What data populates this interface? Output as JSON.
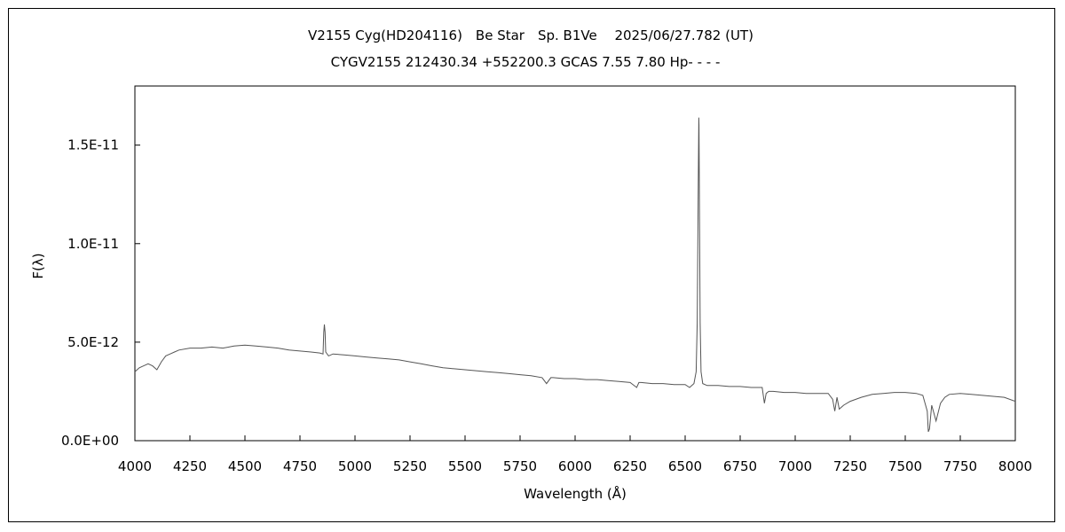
{
  "chart_data": {
    "type": "line",
    "title": "V2155 Cyg(HD204116)　Be Star　Sp. B1Ve　 2025/06/27.782 (UT)",
    "subtitle": "CYGV2155 212430.34 +552200.3 GCAS 7.55 7.80 Hp- - - -",
    "xlabel": "Wavelength (Å)",
    "ylabel": "F(λ)",
    "xlim": [
      4000,
      8000
    ],
    "ylim": [
      0,
      1.8e-11
    ],
    "xticks": [
      4000,
      4250,
      4500,
      4750,
      5000,
      5250,
      5500,
      5750,
      6000,
      6250,
      6500,
      6750,
      7000,
      7250,
      7500,
      7750,
      8000
    ],
    "xtick_labels": [
      "4000",
      "4250",
      "4500",
      "4750",
      "5000",
      "5250",
      "5500",
      "5750",
      "6000",
      "6250",
      "6500",
      "6750",
      "7000",
      "7250",
      "7500",
      "7750",
      "8000"
    ],
    "yticks": [
      0,
      5e-12,
      1e-11,
      1.5e-11
    ],
    "ytick_labels": [
      "0.0E+00",
      "5.0E-12",
      "1.0E-11",
      "1.5E-11"
    ],
    "grid": false,
    "line_color": "#555555",
    "series": [
      {
        "x": [
          4000,
          4020,
          4040,
          4060,
          4080,
          4100,
          4120,
          4140,
          4160,
          4180,
          4200,
          4250,
          4300,
          4350,
          4400,
          4450,
          4500,
          4550,
          4600,
          4650,
          4700,
          4750,
          4800,
          4840,
          4855,
          4858,
          4861,
          4864,
          4867,
          4880,
          4900,
          4950,
          5000,
          5050,
          5100,
          5150,
          5200,
          5250,
          5300,
          5350,
          5400,
          5450,
          5500,
          5550,
          5600,
          5650,
          5700,
          5750,
          5800,
          5850,
          5870,
          5890,
          5900,
          5950,
          6000,
          6050,
          6100,
          6150,
          6200,
          6250,
          6280,
          6290,
          6300,
          6350,
          6400,
          6450,
          6500,
          6520,
          6540,
          6550,
          6555,
          6559,
          6562,
          6563,
          6565,
          6568,
          6572,
          6580,
          6600,
          6650,
          6700,
          6750,
          6800,
          6850,
          6860,
          6868,
          6880,
          6900,
          6950,
          7000,
          7050,
          7100,
          7150,
          7170,
          7180,
          7190,
          7200,
          7220,
          7250,
          7300,
          7350,
          7400,
          7450,
          7500,
          7550,
          7580,
          7600,
          7605,
          7610,
          7620,
          7640,
          7660,
          7680,
          7700,
          7750,
          7800,
          7850,
          7900,
          7950,
          8000
        ],
        "y": [
          3.5e-12,
          3.7e-12,
          3.8e-12,
          3.9e-12,
          3.8e-12,
          3.6e-12,
          4e-12,
          4.3e-12,
          4.4e-12,
          4.5e-12,
          4.6e-12,
          4.7e-12,
          4.7e-12,
          4.75e-12,
          4.7e-12,
          4.8e-12,
          4.85e-12,
          4.8e-12,
          4.75e-12,
          4.7e-12,
          4.6e-12,
          4.55e-12,
          4.5e-12,
          4.45e-12,
          4.4e-12,
          5.5e-12,
          5.9e-12,
          5.5e-12,
          4.5e-12,
          4.3e-12,
          4.4e-12,
          4.35e-12,
          4.3e-12,
          4.25e-12,
          4.2e-12,
          4.15e-12,
          4.1e-12,
          4e-12,
          3.9e-12,
          3.8e-12,
          3.7e-12,
          3.65e-12,
          3.6e-12,
          3.55e-12,
          3.5e-12,
          3.45e-12,
          3.4e-12,
          3.35e-12,
          3.3e-12,
          3.2e-12,
          2.9e-12,
          3.2e-12,
          3.2e-12,
          3.15e-12,
          3.15e-12,
          3.1e-12,
          3.1e-12,
          3.05e-12,
          3e-12,
          2.95e-12,
          2.7e-12,
          2.95e-12,
          2.95e-12,
          2.9e-12,
          2.9e-12,
          2.85e-12,
          2.85e-12,
          2.7e-12,
          2.9e-12,
          3.5e-12,
          6e-12,
          1.2e-11,
          1.64e-11,
          1.6e-11,
          1.2e-11,
          6e-12,
          3.5e-12,
          2.9e-12,
          2.8e-12,
          2.8e-12,
          2.75e-12,
          2.75e-12,
          2.7e-12,
          2.7e-12,
          1.9e-12,
          2.4e-12,
          2.5e-12,
          2.5e-12,
          2.45e-12,
          2.45e-12,
          2.4e-12,
          2.4e-12,
          2.4e-12,
          2.1e-12,
          1.5e-12,
          2.2e-12,
          1.6e-12,
          1.8e-12,
          2e-12,
          2.2e-12,
          2.35e-12,
          2.4e-12,
          2.45e-12,
          2.45e-12,
          2.4e-12,
          2.3e-12,
          1.5e-12,
          4.5e-13,
          6e-13,
          1.8e-12,
          1e-12,
          1.9e-12,
          2.2e-12,
          2.35e-12,
          2.4e-12,
          2.35e-12,
          2.3e-12,
          2.25e-12,
          2.2e-12,
          2e-12
        ]
      }
    ]
  }
}
